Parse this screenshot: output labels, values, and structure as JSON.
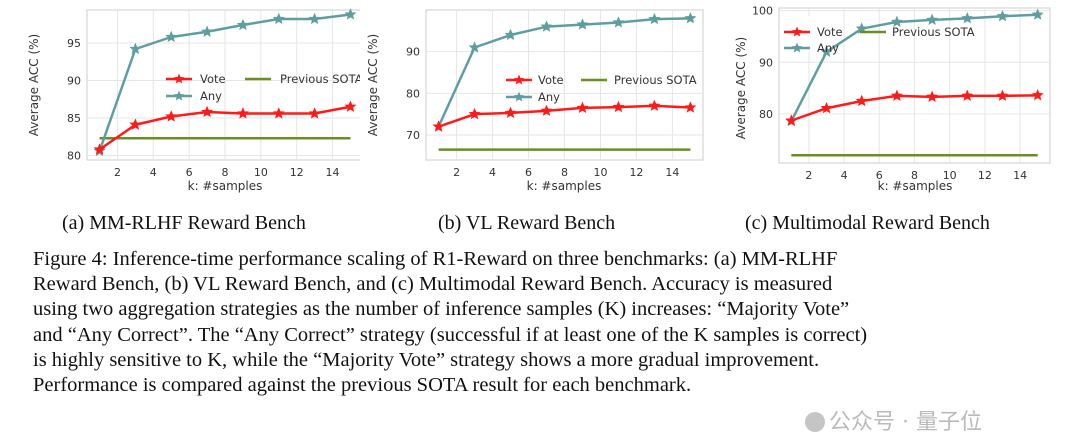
{
  "chart_data": [
    {
      "type": "line",
      "xlabel": "k: #samples",
      "ylabel": "Average ACC (%)",
      "xlim": [
        0.3,
        15.7
      ],
      "ylim": [
        79.4,
        99.4
      ],
      "xticks": [
        2,
        4,
        6,
        8,
        10,
        12,
        14
      ],
      "yticks": [
        80,
        85,
        90,
        95
      ],
      "legend_position": "center-right",
      "series": [
        {
          "name": "Vote",
          "x": [
            1,
            3,
            5,
            7,
            9,
            11,
            13,
            15
          ],
          "values": [
            80.8,
            84.1,
            85.2,
            85.8,
            85.6,
            85.6,
            85.6,
            86.5
          ],
          "color": "#ff1a1a",
          "marker": "star"
        },
        {
          "name": "Any",
          "x": [
            1,
            3,
            5,
            7,
            9,
            11,
            13,
            15
          ],
          "values": [
            80.6,
            94.2,
            95.8,
            96.5,
            97.4,
            98.2,
            98.2,
            98.8
          ],
          "color": "#5f9ea0",
          "marker": "star"
        },
        {
          "name": "Previous SOTA",
          "x": [
            1,
            15
          ],
          "values": [
            82.3,
            82.3
          ],
          "color": "#6b8e23",
          "marker": "none"
        }
      ]
    },
    {
      "type": "line",
      "xlabel": "k: #samples",
      "ylabel": "Average ACC (%)",
      "xlim": [
        0.3,
        15.7
      ],
      "ylim": [
        64.0,
        100.0
      ],
      "xticks": [
        2,
        4,
        6,
        8,
        10,
        12,
        14
      ],
      "yticks": [
        70,
        80,
        90
      ],
      "legend_position": "center-right",
      "series": [
        {
          "name": "Vote",
          "x": [
            1,
            3,
            5,
            7,
            9,
            11,
            13,
            15
          ],
          "values": [
            72.0,
            75.0,
            75.3,
            75.8,
            76.5,
            76.7,
            77.0,
            76.6
          ],
          "color": "#ff1a1a",
          "marker": "star"
        },
        {
          "name": "Any",
          "x": [
            1,
            3,
            5,
            7,
            9,
            11,
            13,
            15
          ],
          "values": [
            72.0,
            91.0,
            94.0,
            96.0,
            96.5,
            97.0,
            97.8,
            98.0
          ],
          "color": "#5f9ea0",
          "marker": "star"
        },
        {
          "name": "Previous SOTA",
          "x": [
            1,
            15
          ],
          "values": [
            66.5,
            66.5
          ],
          "color": "#6b8e23",
          "marker": "none"
        }
      ]
    },
    {
      "type": "line",
      "xlabel": "k: #samples",
      "ylabel": "Average ACC (%)",
      "xlim": [
        0.3,
        15.7
      ],
      "ylim": [
        70.5,
        100.5
      ],
      "xticks": [
        2,
        4,
        6,
        8,
        10,
        12,
        14
      ],
      "yticks": [
        80,
        90,
        100
      ],
      "legend_position": "top",
      "series": [
        {
          "name": "Vote",
          "x": [
            1,
            3,
            5,
            7,
            9,
            11,
            13,
            15
          ],
          "values": [
            78.7,
            81.1,
            82.5,
            83.5,
            83.3,
            83.5,
            83.5,
            83.6
          ],
          "color": "#ff1a1a",
          "marker": "star"
        },
        {
          "name": "Any",
          "x": [
            1,
            3,
            5,
            7,
            9,
            11,
            13,
            15
          ],
          "values": [
            78.6,
            92.0,
            96.5,
            97.8,
            98.2,
            98.5,
            98.9,
            99.2
          ],
          "color": "#5f9ea0",
          "marker": "star"
        },
        {
          "name": "Previous SOTA",
          "x": [
            1,
            15
          ],
          "values": [
            72.0,
            72.0
          ],
          "color": "#6b8e23",
          "marker": "none"
        }
      ]
    }
  ],
  "subcaptions": {
    "a": "(a)  MM-RLHF Reward Bench",
    "b": "(b)  VL Reward Bench",
    "c": "(c)  Multimodal Reward Bench"
  },
  "caption_lines": [
    "Figure 4: Inference-time performance scaling of R1-Reward on three benchmarks: (a) MM-RLHF",
    "Reward Bench, (b) VL Reward Bench, and (c) Multimodal Reward Bench. Accuracy is measured",
    "using two aggregation strategies as the number of inference samples (K) increases: “Majority Vote”",
    "and “Any Correct”. The “Any Correct” strategy (successful if at least one of the K samples is correct)",
    "is highly sensitive to K, while the “Majority Vote” strategy shows a more gradual improvement.",
    "Performance is compared against the previous SOTA result for each benchmark."
  ],
  "watermark": "公众号 · 量子位"
}
